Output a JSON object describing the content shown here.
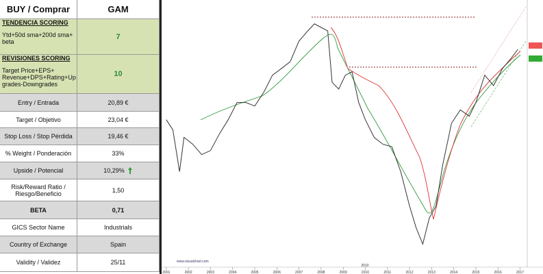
{
  "table": {
    "header": [
      "BUY / Comprar",
      "GAM"
    ],
    "rows": [
      [
        "TENDENCIA SCORING",
        "Ytd+50d sma+200d sma+ beta",
        "7"
      ],
      [
        "REVISIONES SCORING",
        "Target Price+EPS+ Revenue+DPS+Rating+Up grades-Downgrades",
        "10"
      ],
      [
        "Entry / Entrada",
        "20,89 €"
      ],
      [
        "Target / Objetivo",
        "23,04 €"
      ],
      [
        "Stop Loss / Stop Pérdida",
        "19,46 €"
      ],
      [
        "% Weight / Ponderación",
        "33%"
      ],
      [
        "Upside / Potencial",
        "10,29%"
      ],
      [
        "Risk/Reward  Ratio / Riesgo/Beneficio",
        "1,50"
      ],
      [
        "BETA",
        "0,71"
      ],
      [
        "GICS Sector Name",
        "Industrials"
      ],
      [
        "Country of Exchange",
        "Spain"
      ],
      [
        "Validity / Validez",
        "25/11"
      ]
    ]
  },
  "chart_data": {
    "type": "line",
    "log_scale": true,
    "color": "#333333",
    "watermark": "www.visualchart.com",
    "annotation": "2010",
    "x": [
      2001.0,
      2001.3,
      2001.6,
      2001.8,
      2002.2,
      2002.6,
      2003.0,
      2003.4,
      2003.8,
      2004.2,
      2004.6,
      2005.0,
      2005.4,
      2005.8,
      2006.2,
      2006.6,
      2007.0,
      2007.4,
      2007.7,
      2008.0,
      2008.3,
      2008.5,
      2008.8,
      2009.1,
      2009.4,
      2009.7,
      2010.0,
      2010.4,
      2010.8,
      2011.2,
      2011.6,
      2012.0,
      2012.3,
      2012.6,
      2012.9,
      2013.2,
      2013.5,
      2013.9,
      2014.3,
      2014.7,
      2015.0,
      2015.4,
      2015.8,
      2016.2,
      2016.6,
      2016.9
    ],
    "values": [
      8.7,
      7.6,
      4.4,
      6.9,
      6.3,
      5.5,
      5.8,
      7.2,
      8.7,
      10.9,
      10.9,
      10.4,
      12.4,
      15.6,
      17.0,
      18.6,
      24.4,
      27.9,
      30.6,
      29.2,
      27.9,
      14.2,
      13.0,
      15.6,
      16.3,
      10.9,
      8.7,
      6.9,
      6.3,
      6.1,
      4.4,
      2.8,
      2.1,
      1.7,
      2.4,
      2.8,
      4.8,
      8.3,
      9.9,
      9.1,
      10.9,
      15.6,
      13.6,
      17.0,
      19.5,
      21.9
    ],
    "xlim": [
      2000.85,
      2017.2
    ],
    "ylim": [
      1.2,
      40
    ],
    "xticks": [
      2001,
      2002,
      2003,
      2004,
      2005,
      2006,
      2007,
      2008,
      2009,
      2010,
      2011,
      2012,
      2013,
      2014,
      2015,
      2016,
      2017
    ]
  }
}
